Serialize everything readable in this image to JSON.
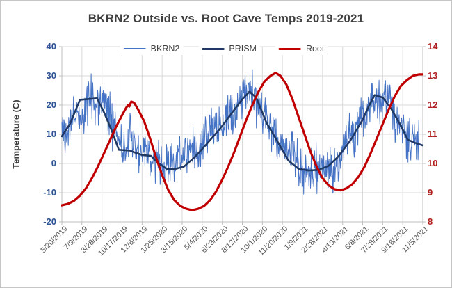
{
  "chart_data": {
    "type": "line",
    "title": "BKRN2 Outside vs. Root Cave Temps 2019-2021",
    "left_axis_label": "Temperature (C)",
    "left_axis": {
      "min": -20,
      "max": 40,
      "step": 10,
      "tick_labels": [
        "40",
        "30",
        "20",
        "10",
        "0",
        "-10",
        "-20"
      ]
    },
    "right_axis": {
      "min": 8,
      "max": 14,
      "step": 1,
      "tick_labels": [
        "14",
        "13",
        "12",
        "11",
        "10",
        "9",
        "8"
      ]
    },
    "x_axis": {
      "days_per_tick": 50,
      "total_days": 900,
      "tick_labels": [
        "5/20/2019",
        "7/9/2019",
        "8/28/2019",
        "10/17/2019",
        "12/6/2019",
        "1/25/2020",
        "3/15/2020",
        "5/4/2020",
        "6/23/2020",
        "8/12/2020",
        "10/1/2020",
        "11/20/2020",
        "1/9/2021",
        "2/28/2021",
        "4/19/2021",
        "6/8/2021",
        "7/28/2021",
        "9/16/2021",
        "11/5/2021"
      ]
    },
    "grid": true,
    "legend_position": "top",
    "colors": {
      "gridline": "#d9d9d9",
      "axis_line": "#bfbfbf",
      "left_tick_text": "#2e5395",
      "right_tick_text": "#b02020",
      "date_text": "#595959",
      "title_text": "#3f3f3f"
    },
    "series": [
      {
        "name": "BKRN2",
        "axis": "left",
        "color": "#4472C4",
        "line_width": 1,
        "style": "noisy_daily",
        "noise_seed": 42,
        "envelope_day_mean_spread": [
          [
            0,
            11,
            9
          ],
          [
            30,
            16,
            9
          ],
          [
            60,
            21,
            9
          ],
          [
            95,
            22,
            9
          ],
          [
            125,
            14,
            10
          ],
          [
            150,
            8,
            10
          ],
          [
            175,
            5,
            9
          ],
          [
            200,
            3.5,
            9
          ],
          [
            230,
            1,
            9
          ],
          [
            265,
            -1,
            9
          ],
          [
            300,
            1.5,
            9
          ],
          [
            330,
            5,
            9
          ],
          [
            365,
            10,
            9
          ],
          [
            400,
            15,
            9
          ],
          [
            430,
            20,
            9
          ],
          [
            465,
            24,
            9
          ],
          [
            495,
            19,
            10
          ],
          [
            525,
            11,
            10
          ],
          [
            555,
            4,
            9
          ],
          [
            585,
            -1,
            9
          ],
          [
            615,
            -2.5,
            9
          ],
          [
            645,
            -1.5,
            9
          ],
          [
            675,
            2,
            9
          ],
          [
            705,
            7,
            9
          ],
          [
            735,
            13,
            9
          ],
          [
            765,
            19,
            9
          ],
          [
            790,
            24,
            9
          ],
          [
            815,
            23,
            9
          ],
          [
            845,
            15,
            10
          ],
          [
            870,
            9,
            9
          ],
          [
            890,
            7,
            9
          ]
        ]
      },
      {
        "name": "PRISM",
        "axis": "left",
        "color": "#1F3864",
        "line_width": 2.6,
        "points_day_value": [
          [
            0,
            9.3
          ],
          [
            20,
            13.5
          ],
          [
            45,
            21.8
          ],
          [
            88,
            22.3
          ],
          [
            105,
            17.5
          ],
          [
            122,
            12.0
          ],
          [
            142,
            4.7
          ],
          [
            170,
            4.4
          ],
          [
            185,
            3.6
          ],
          [
            200,
            2.9
          ],
          [
            222,
            2.6
          ],
          [
            240,
            0.2
          ],
          [
            262,
            -1.9
          ],
          [
            285,
            -1.8
          ],
          [
            305,
            -1.0
          ],
          [
            330,
            2.0
          ],
          [
            360,
            6.5
          ],
          [
            395,
            12.0
          ],
          [
            425,
            17.5
          ],
          [
            450,
            22.0
          ],
          [
            468,
            24.6
          ],
          [
            485,
            22.5
          ],
          [
            510,
            14.0
          ],
          [
            540,
            7.0
          ],
          [
            565,
            1.0
          ],
          [
            590,
            -1.8
          ],
          [
            615,
            -2.4
          ],
          [
            640,
            -2.2
          ],
          [
            665,
            -0.8
          ],
          [
            690,
            2.5
          ],
          [
            720,
            8.0
          ],
          [
            750,
            15.0
          ],
          [
            765,
            19.5
          ],
          [
            780,
            23.4
          ],
          [
            800,
            22.6
          ],
          [
            820,
            19.0
          ],
          [
            845,
            13.0
          ],
          [
            862,
            8.2
          ],
          [
            878,
            7.2
          ],
          [
            900,
            6.2
          ]
        ]
      },
      {
        "name": "Root",
        "axis": "right",
        "color": "#C00000",
        "line_width": 3.2,
        "points_day_value": [
          [
            0,
            8.57
          ],
          [
            15,
            8.62
          ],
          [
            30,
            8.72
          ],
          [
            45,
            8.9
          ],
          [
            60,
            9.15
          ],
          [
            75,
            9.5
          ],
          [
            90,
            9.9
          ],
          [
            105,
            10.35
          ],
          [
            120,
            10.8
          ],
          [
            135,
            11.25
          ],
          [
            150,
            11.65
          ],
          [
            160,
            11.9
          ],
          [
            165,
            12.0
          ],
          [
            168,
            11.95
          ],
          [
            173,
            12.12
          ],
          [
            180,
            12.08
          ],
          [
            190,
            11.85
          ],
          [
            205,
            11.45
          ],
          [
            220,
            10.85
          ],
          [
            235,
            10.2
          ],
          [
            250,
            9.6
          ],
          [
            265,
            9.1
          ],
          [
            280,
            8.75
          ],
          [
            295,
            8.55
          ],
          [
            310,
            8.45
          ],
          [
            325,
            8.4
          ],
          [
            340,
            8.45
          ],
          [
            355,
            8.55
          ],
          [
            370,
            8.75
          ],
          [
            385,
            9.05
          ],
          [
            400,
            9.45
          ],
          [
            415,
            9.9
          ],
          [
            430,
            10.4
          ],
          [
            445,
            10.95
          ],
          [
            460,
            11.5
          ],
          [
            475,
            12.0
          ],
          [
            490,
            12.45
          ],
          [
            505,
            12.8
          ],
          [
            520,
            13.0
          ],
          [
            533,
            13.1
          ],
          [
            545,
            13.0
          ],
          [
            560,
            12.7
          ],
          [
            575,
            12.2
          ],
          [
            590,
            11.6
          ],
          [
            605,
            11.0
          ],
          [
            620,
            10.4
          ],
          [
            635,
            9.9
          ],
          [
            650,
            9.5
          ],
          [
            665,
            9.25
          ],
          [
            680,
            9.12
          ],
          [
            695,
            9.08
          ],
          [
            710,
            9.15
          ],
          [
            725,
            9.3
          ],
          [
            740,
            9.55
          ],
          [
            755,
            9.9
          ],
          [
            770,
            10.35
          ],
          [
            785,
            10.85
          ],
          [
            800,
            11.35
          ],
          [
            815,
            11.85
          ],
          [
            830,
            12.3
          ],
          [
            845,
            12.65
          ],
          [
            860,
            12.85
          ],
          [
            875,
            13.0
          ],
          [
            890,
            13.05
          ],
          [
            900,
            13.05
          ]
        ]
      }
    ]
  }
}
